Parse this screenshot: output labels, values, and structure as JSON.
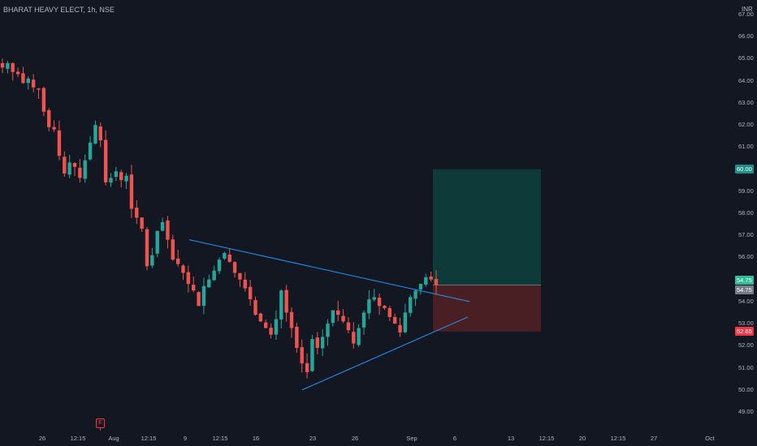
{
  "header": {
    "title": "BHARAT HEAVY ELECT, 1h, NSE",
    "currency": "INR"
  },
  "colors": {
    "background": "#131722",
    "up": "#26a69a",
    "down": "#ef5350",
    "trendline": "#2196f3",
    "target_zone": "#0f3a3a",
    "stop_zone": "#4a1f24",
    "target_badge": "#1e8f87",
    "stop_badge": "#f23645",
    "last_badge": "#2ebd96",
    "current_badge": "#787b86"
  },
  "earnings_marker": {
    "label": "E"
  },
  "badges": {
    "target": "60.00",
    "last": "54.75",
    "current": "54.75",
    "stop": "52.65"
  },
  "chart_data": {
    "type": "candlestick",
    "title": "BHARAT HEAVY ELECT, 1h, NSE",
    "y_axis": {
      "unit": "INR",
      "ticks": [
        "67.00",
        "66.00",
        "65.00",
        "64.00",
        "63.00",
        "62.00",
        "61.00",
        "60.00",
        "59.00",
        "58.00",
        "57.00",
        "56.00",
        "55.00",
        "54.00",
        "53.00",
        "52.00",
        "51.00",
        "50.00",
        "49.00"
      ],
      "range": [
        48.5,
        67.5
      ]
    },
    "x_axis": {
      "ticks": [
        "26",
        "12:15",
        "Aug",
        "12:15",
        "9",
        "12:15",
        "16",
        "23",
        "26",
        "Sep",
        "6",
        "13",
        "12:15",
        "20",
        "12:15",
        "27",
        "Oct"
      ]
    },
    "trend_line_close": [
      64.6,
      64.8,
      64.4,
      64.3,
      63.9,
      64.1,
      63.7,
      63.6,
      62.6,
      61.9,
      61.8,
      60.6,
      59.8,
      60.3,
      60.1,
      59.6,
      60.4,
      61.2,
      62.0,
      61.3,
      59.4,
      59.6,
      59.9,
      59.5,
      59.7,
      58.2,
      57.8,
      57.3,
      55.6,
      56.1,
      57.2,
      57.6,
      56.8,
      55.9,
      55.7,
      55.3,
      54.8,
      54.5,
      53.8,
      54.7,
      55.0,
      55.4,
      55.9,
      56.2,
      55.8,
      55.3,
      55.0,
      54.6,
      54.1,
      53.4,
      53.1,
      52.8,
      52.5,
      53.2,
      54.5,
      53.5,
      52.8,
      51.9,
      51.2,
      50.8,
      52.3,
      51.9,
      52.4,
      53.0,
      53.6,
      53.4,
      53.1,
      52.7,
      52.1,
      52.8,
      53.5,
      54.1,
      54.2,
      53.8,
      53.7,
      53.3,
      53.0,
      52.6,
      53.5,
      54.2,
      54.5,
      54.8,
      55.1,
      55.0,
      54.75
    ],
    "price_levels": {
      "target": 60.0,
      "entry": 54.75,
      "stop": 52.65
    },
    "annotations": [
      {
        "kind": "resistance-trendline",
        "from": {
          "x": "8 Aug",
          "y": 56.8
        },
        "to": {
          "x": "5 Sep",
          "y": 54.0
        }
      },
      {
        "kind": "support-trendline",
        "from": {
          "x": "23 Aug",
          "y": 50.0
        },
        "to": {
          "x": "5 Sep",
          "y": 53.3
        }
      },
      {
        "kind": "long-position",
        "target": 60.0,
        "entry": 54.75,
        "stop": 52.65
      }
    ]
  }
}
